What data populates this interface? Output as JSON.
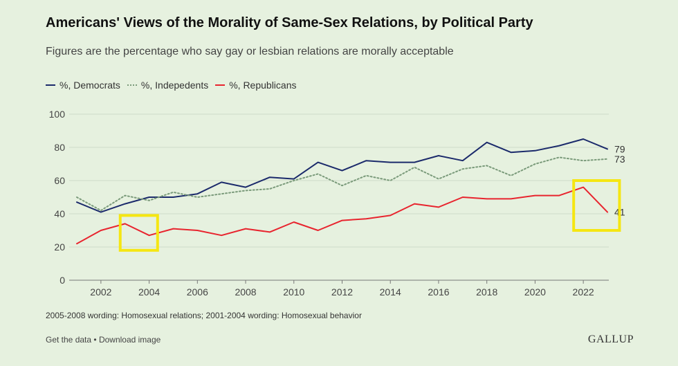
{
  "title": "Americans' Views of the Morality of Same-Sex Relations, by Political Party",
  "subtitle": "Figures are the percentage who say gay or lesbian relations are morally acceptable",
  "legend": [
    {
      "label": "%, Democrats",
      "color": "#1b2a6b",
      "style": "solid"
    },
    {
      "label": "%, Indepedents",
      "color": "#7a9a7a",
      "style": "dotted"
    },
    {
      "label": "%, Republicans",
      "color": "#e8242e",
      "style": "solid"
    }
  ],
  "footnote": "2005-2008 wording: Homosexual relations; 2001-2004 wording: Homosexual behavior",
  "links": {
    "get_data": "Get the data",
    "separator": "•",
    "download": "Download image"
  },
  "brand": "GALLUP",
  "highlight_color": "#f5e612",
  "chart_data": {
    "type": "line",
    "x": [
      2001,
      2002,
      2003,
      2004,
      2005,
      2006,
      2007,
      2008,
      2009,
      2010,
      2011,
      2012,
      2013,
      2014,
      2015,
      2016,
      2017,
      2018,
      2019,
      2020,
      2021,
      2022,
      2023
    ],
    "x_ticks": [
      "2002",
      "2004",
      "2006",
      "2008",
      "2010",
      "2012",
      "2014",
      "2016",
      "2018",
      "2020",
      "2022"
    ],
    "y_ticks": [
      "0",
      "20",
      "40",
      "60",
      "80",
      "100"
    ],
    "ylim": [
      0,
      100
    ],
    "grid": "horizontal",
    "legend_position": "top-left",
    "series": [
      {
        "name": "%, Democrats",
        "color": "#1b2a6b",
        "dash": "none",
        "values": [
          47,
          41,
          46,
          50,
          50,
          52,
          59,
          56,
          62,
          61,
          71,
          66,
          72,
          71,
          71,
          75,
          72,
          83,
          77,
          78,
          81,
          85,
          79
        ],
        "end_label": "79"
      },
      {
        "name": "%, Indepedents",
        "color": "#7a9a7a",
        "dash": "2,3",
        "values": [
          50,
          42,
          51,
          48,
          53,
          50,
          52,
          54,
          55,
          60,
          64,
          57,
          63,
          60,
          68,
          61,
          67,
          69,
          63,
          70,
          74,
          72,
          73
        ],
        "end_label": "73"
      },
      {
        "name": "%, Republicans",
        "color": "#e8242e",
        "dash": "none",
        "values": [
          22,
          30,
          34,
          27,
          31,
          30,
          27,
          31,
          29,
          35,
          30,
          36,
          37,
          39,
          46,
          44,
          50,
          49,
          49,
          51,
          51,
          56,
          41
        ],
        "end_label": "41"
      }
    ],
    "highlights": [
      {
        "x_range": [
          2002.8,
          2004.35
        ],
        "y_range": [
          18,
          39
        ]
      },
      {
        "x_range": [
          2021.6,
          2023.5
        ],
        "y_range": [
          30,
          60
        ]
      }
    ]
  }
}
